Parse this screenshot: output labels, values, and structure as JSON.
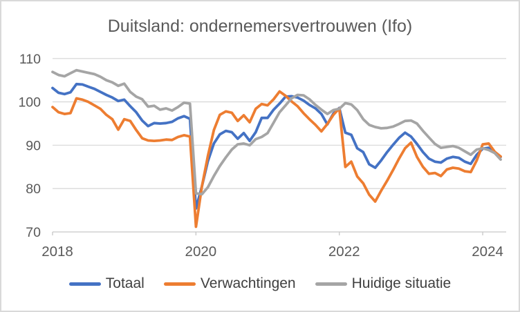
{
  "title": "Duitsland: ondernemersvertrouwen (Ifo)",
  "legend": {
    "items": [
      {
        "label": "Totaal",
        "color": "#4472C4"
      },
      {
        "label": "Verwachtingen",
        "color": "#ED7D31"
      },
      {
        "label": "Huidige situatie",
        "color": "#A5A5A5"
      }
    ]
  },
  "colors": {
    "background": "#FFFFFF",
    "frame_border": "#D9D9D9",
    "gridline": "#D9D9D9",
    "axis_line": "#C6C6C6",
    "title_text": "#595959",
    "axis_text": "#595959",
    "legend_text": "#404040"
  },
  "chart_data": {
    "type": "line",
    "title": "Duitsland: ondernemersvertrouwen (Ifo)",
    "xlabel": "",
    "ylabel": "",
    "ylim": [
      70,
      110
    ],
    "grid": true,
    "legend_position": "bottom",
    "y_ticks": [
      70,
      80,
      90,
      100,
      110
    ],
    "x_tick_labels": [
      "2018",
      "2020",
      "2022",
      "2024"
    ],
    "x_tick_indices": [
      0,
      24,
      48,
      72
    ],
    "x": [
      "2018-01",
      "2018-02",
      "2018-03",
      "2018-04",
      "2018-05",
      "2018-06",
      "2018-07",
      "2018-08",
      "2018-09",
      "2018-10",
      "2018-11",
      "2018-12",
      "2019-01",
      "2019-02",
      "2019-03",
      "2019-04",
      "2019-05",
      "2019-06",
      "2019-07",
      "2019-08",
      "2019-09",
      "2019-10",
      "2019-11",
      "2019-12",
      "2020-01",
      "2020-02",
      "2020-03",
      "2020-04",
      "2020-05",
      "2020-06",
      "2020-07",
      "2020-08",
      "2020-09",
      "2020-10",
      "2020-11",
      "2020-12",
      "2021-01",
      "2021-02",
      "2021-03",
      "2021-04",
      "2021-05",
      "2021-06",
      "2021-07",
      "2021-08",
      "2021-09",
      "2021-10",
      "2021-11",
      "2021-12",
      "2022-01",
      "2022-02",
      "2022-03",
      "2022-04",
      "2022-05",
      "2022-06",
      "2022-07",
      "2022-08",
      "2022-09",
      "2022-10",
      "2022-11",
      "2022-12",
      "2023-01",
      "2023-02",
      "2023-03",
      "2023-04",
      "2023-05",
      "2023-06",
      "2023-07",
      "2023-08",
      "2023-09",
      "2023-10",
      "2023-11",
      "2023-12",
      "2024-01",
      "2024-02",
      "2024-03",
      "2024-04"
    ],
    "series": [
      {
        "name": "Totaal",
        "color": "#4472C4",
        "values": [
          103.2,
          102.1,
          101.8,
          102.2,
          104.1,
          104.0,
          103.5,
          103.0,
          102.3,
          101.6,
          101.0,
          100.2,
          100.5,
          99.0,
          97.6,
          95.7,
          94.4,
          95.1,
          95.0,
          95.1,
          95.4,
          96.2,
          96.7,
          96.1,
          75.4,
          80.5,
          86.3,
          90.4,
          92.5,
          93.3,
          93.0,
          91.5,
          92.8,
          91.0,
          93.0,
          96.3,
          96.3,
          98.2,
          99.6,
          101.2,
          101.3,
          101.0,
          100.3,
          99.3,
          98.5,
          97.2,
          94.8,
          97.3,
          98.6,
          92.9,
          92.4,
          89.3,
          88.4,
          85.6,
          84.8,
          86.5,
          88.4,
          90.1,
          91.7,
          92.9,
          92.0,
          90.3,
          88.4,
          86.9,
          86.2,
          86.0,
          86.9,
          87.3,
          87.1,
          86.2,
          85.7,
          87.8,
          89.2,
          89.4,
          88.3,
          87.3
        ]
      },
      {
        "name": "Verwachtingen",
        "color": "#ED7D31",
        "values": [
          98.8,
          97.6,
          97.2,
          97.4,
          100.8,
          100.5,
          100.0,
          99.2,
          98.4,
          97.0,
          96.0,
          93.6,
          96.0,
          95.6,
          93.5,
          91.6,
          91.1,
          91.0,
          91.1,
          91.3,
          91.2,
          91.9,
          92.3,
          92.0,
          71.2,
          80.5,
          87.5,
          93.5,
          97.0,
          97.8,
          97.5,
          95.6,
          96.9,
          95.3,
          98.4,
          99.5,
          99.2,
          100.6,
          102.4,
          101.4,
          100.1,
          99.0,
          97.4,
          96.0,
          94.7,
          93.2,
          94.9,
          97.0,
          98.5,
          85.0,
          86.2,
          82.8,
          81.2,
          78.6,
          77.0,
          79.5,
          81.8,
          84.3,
          86.9,
          89.3,
          90.6,
          87.3,
          85.0,
          83.4,
          83.6,
          82.9,
          84.4,
          84.8,
          84.6,
          84.0,
          83.8,
          86.5,
          90.2,
          90.4,
          88.5,
          87.4
        ]
      },
      {
        "name": "Huidige situatie",
        "color": "#A5A5A5",
        "values": [
          106.9,
          106.2,
          105.9,
          106.6,
          107.3,
          107.0,
          106.7,
          106.4,
          105.8,
          105.0,
          104.5,
          103.7,
          104.2,
          102.3,
          101.2,
          100.6,
          98.9,
          99.1,
          98.2,
          98.5,
          98.0,
          98.8,
          99.8,
          99.6,
          78.9,
          78.7,
          80.3,
          82.9,
          85.2,
          87.2,
          89.0,
          90.2,
          90.4,
          90.0,
          91.4,
          91.9,
          92.8,
          95.2,
          97.6,
          99.2,
          100.8,
          101.6,
          101.5,
          100.6,
          99.3,
          98.2,
          97.2,
          98.1,
          98.4,
          99.7,
          99.4,
          98.1,
          96.0,
          94.7,
          94.2,
          93.9,
          94.0,
          94.3,
          94.9,
          95.6,
          95.7,
          95.0,
          93.3,
          91.8,
          90.3,
          89.4,
          89.6,
          89.8,
          89.4,
          88.6,
          87.8,
          89.0,
          89.3,
          88.9,
          88.2,
          86.7
        ]
      }
    ]
  }
}
